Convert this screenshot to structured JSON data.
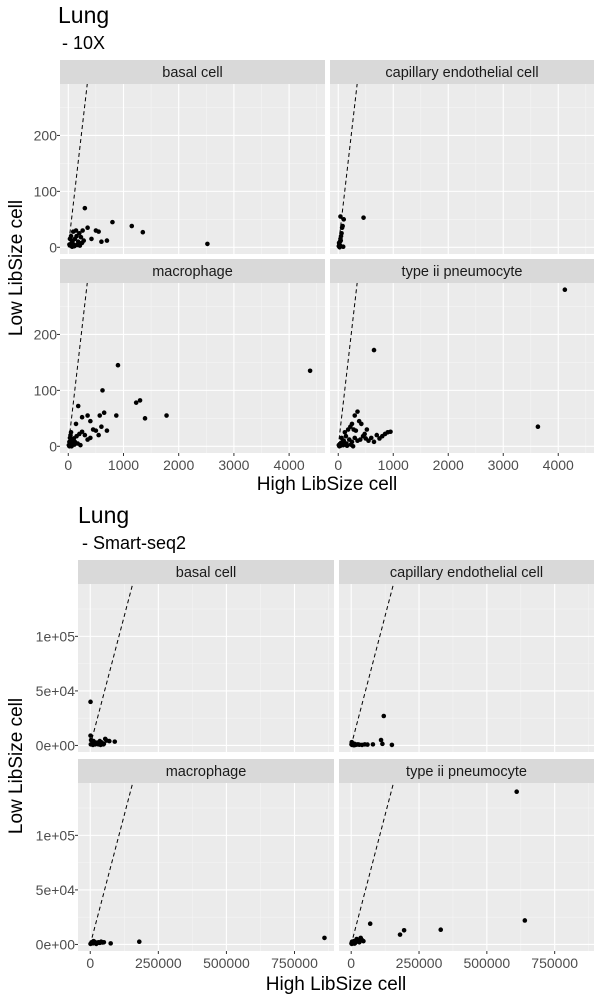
{
  "chart_data": [
    {
      "type": "scatter",
      "title": "Lung",
      "subtitle": " - 10X",
      "xlabel": "High LibSize cell",
      "ylabel": "Low LibSize cell",
      "xlim": [
        -150,
        4650
      ],
      "ylim": [
        -12,
        292
      ],
      "xticks": [
        0,
        1000,
        2000,
        3000,
        4000
      ],
      "xtick_labels": [
        "0",
        "1000",
        "2000",
        "3000",
        "4000"
      ],
      "yticks": [
        0,
        100,
        200
      ],
      "ytick_labels": [
        "0",
        "100",
        "200"
      ],
      "reference_line_slope": 0.85,
      "panels": [
        {
          "name": "basal cell",
          "points": [
            [
              20,
              5
            ],
            [
              40,
              3
            ],
            [
              60,
              8
            ],
            [
              80,
              12
            ],
            [
              100,
              5
            ],
            [
              120,
              15
            ],
            [
              150,
              20
            ],
            [
              180,
              10
            ],
            [
              200,
              25
            ],
            [
              230,
              18
            ],
            [
              250,
              8
            ],
            [
              50,
              20
            ],
            [
              90,
              28
            ],
            [
              300,
              70
            ],
            [
              350,
              35
            ],
            [
              420,
              15
            ],
            [
              500,
              30
            ],
            [
              550,
              28
            ],
            [
              600,
              10
            ],
            [
              700,
              12
            ],
            [
              800,
              45
            ],
            [
              1150,
              38
            ],
            [
              1350,
              27
            ],
            [
              2520,
              6
            ],
            [
              140,
              30
            ],
            [
              260,
              30
            ],
            [
              30,
              15
            ],
            [
              70,
              1
            ],
            [
              110,
              2
            ],
            [
              160,
              4
            ],
            [
              190,
              6
            ],
            [
              210,
              3
            ],
            [
              280,
              12
            ]
          ]
        },
        {
          "name": "capillary endothelial cell",
          "points": [
            [
              10,
              2
            ],
            [
              20,
              5
            ],
            [
              30,
              10
            ],
            [
              40,
              15
            ],
            [
              50,
              20
            ],
            [
              60,
              25
            ],
            [
              70,
              35
            ],
            [
              80,
              38
            ],
            [
              40,
              55
            ],
            [
              100,
              50
            ],
            [
              25,
              0
            ],
            [
              35,
              3
            ],
            [
              15,
              8
            ],
            [
              45,
              12
            ],
            [
              90,
              1
            ],
            [
              460,
              53
            ]
          ]
        },
        {
          "name": "macrophage",
          "points": [
            [
              10,
              2
            ],
            [
              20,
              8
            ],
            [
              30,
              15
            ],
            [
              40,
              20
            ],
            [
              50,
              25
            ],
            [
              60,
              5
            ],
            [
              80,
              10
            ],
            [
              100,
              14
            ],
            [
              120,
              8
            ],
            [
              150,
              18
            ],
            [
              200,
              22
            ],
            [
              250,
              26
            ],
            [
              300,
              20
            ],
            [
              350,
              12
            ],
            [
              400,
              15
            ],
            [
              450,
              30
            ],
            [
              500,
              28
            ],
            [
              550,
              20
            ],
            [
              600,
              35
            ],
            [
              650,
              60
            ],
            [
              700,
              28
            ],
            [
              180,
              72
            ],
            [
              350,
              55
            ],
            [
              400,
              45
            ],
            [
              570,
              55
            ],
            [
              620,
              100
            ],
            [
              900,
              145
            ],
            [
              870,
              55
            ],
            [
              1230,
              78
            ],
            [
              1300,
              82
            ],
            [
              1390,
              50
            ],
            [
              1780,
              55
            ],
            [
              4380,
              135
            ],
            [
              140,
              40
            ],
            [
              250,
              52
            ],
            [
              20,
              0
            ],
            [
              60,
              0
            ],
            [
              110,
              3
            ],
            [
              170,
              5
            ],
            [
              220,
              2
            ]
          ]
        },
        {
          "name": "type ii pneumocyte",
          "points": [
            [
              10,
              2
            ],
            [
              30,
              4
            ],
            [
              50,
              6
            ],
            [
              80,
              8
            ],
            [
              100,
              10
            ],
            [
              150,
              5
            ],
            [
              200,
              12
            ],
            [
              250,
              8
            ],
            [
              300,
              15
            ],
            [
              350,
              10
            ],
            [
              400,
              12
            ],
            [
              450,
              18
            ],
            [
              500,
              14
            ],
            [
              550,
              10
            ],
            [
              600,
              15
            ],
            [
              650,
              8
            ],
            [
              700,
              20
            ],
            [
              750,
              14
            ],
            [
              800,
              18
            ],
            [
              850,
              22
            ],
            [
              900,
              25
            ],
            [
              950,
              26
            ],
            [
              120,
              25
            ],
            [
              180,
              30
            ],
            [
              220,
              35
            ],
            [
              250,
              40
            ],
            [
              280,
              30
            ],
            [
              300,
              55
            ],
            [
              350,
              62
            ],
            [
              380,
              45
            ],
            [
              420,
              40
            ],
            [
              480,
              22
            ],
            [
              650,
              172
            ],
            [
              3630,
              35
            ],
            [
              4120,
              280
            ],
            [
              60,
              15
            ],
            [
              140,
              18
            ],
            [
              320,
              28
            ],
            [
              520,
              30
            ],
            [
              20,
              0
            ],
            [
              40,
              1
            ],
            [
              90,
              2
            ],
            [
              160,
              1
            ],
            [
              230,
              3
            ],
            [
              270,
              0
            ]
          ]
        }
      ]
    },
    {
      "type": "scatter",
      "title": "Lung",
      "subtitle": " - Smart-seq2",
      "xlabel": "High LibSize cell",
      "ylabel": "Low LibSize cell",
      "xlim": [
        -45000,
        895000
      ],
      "ylim": [
        -6000,
        148000
      ],
      "xticks": [
        0,
        250000,
        500000,
        750000
      ],
      "xtick_labels": [
        "0",
        "250000",
        "500000",
        "750000"
      ],
      "yticks": [
        0,
        50000,
        100000
      ],
      "ytick_labels": [
        "0e+00",
        "5e+04",
        "1e+05"
      ],
      "reference_line_slope": 0.95,
      "panels": [
        {
          "name": "basal cell",
          "points": [
            [
              1000,
              40000
            ],
            [
              1000,
              9000
            ],
            [
              3000,
              5000
            ],
            [
              5000,
              1000
            ],
            [
              8000,
              2000
            ],
            [
              10000,
              500
            ],
            [
              15000,
              3000
            ],
            [
              20000,
              1500
            ],
            [
              25000,
              2500
            ],
            [
              30000,
              1000
            ],
            [
              35000,
              4000
            ],
            [
              40000,
              3000
            ],
            [
              45000,
              2000
            ],
            [
              50000,
              1500
            ],
            [
              55000,
              6000
            ],
            [
              60000,
              4500
            ],
            [
              70000,
              4000
            ],
            [
              90000,
              3500
            ],
            [
              12000,
              4000
            ],
            [
              18000,
              1000
            ],
            [
              28000,
              2000
            ],
            [
              38000,
              500
            ],
            [
              48000,
              1000
            ],
            [
              2000,
              1000
            ]
          ]
        },
        {
          "name": "capillary endothelial cell",
          "points": [
            [
              1000,
              1000
            ],
            [
              2000,
              3000
            ],
            [
              3000,
              500
            ],
            [
              5000,
              2000
            ],
            [
              8000,
              1000
            ],
            [
              12000,
              1500
            ],
            [
              15000,
              500
            ],
            [
              20000,
              800
            ],
            [
              25000,
              1000
            ],
            [
              30000,
              700
            ],
            [
              40000,
              500
            ],
            [
              50000,
              1000
            ],
            [
              60000,
              800
            ],
            [
              80000,
              1000
            ],
            [
              110000,
              5000
            ],
            [
              120000,
              27000
            ],
            [
              115000,
              1500
            ],
            [
              150000,
              500
            ],
            [
              4000,
              1200
            ],
            [
              10000,
              200
            ]
          ]
        },
        {
          "name": "macrophage",
          "points": [
            [
              1000,
              500
            ],
            [
              3000,
              1000
            ],
            [
              5000,
              2000
            ],
            [
              8000,
              1500
            ],
            [
              10000,
              1000
            ],
            [
              15000,
              2500
            ],
            [
              20000,
              1800
            ],
            [
              25000,
              1200
            ],
            [
              30000,
              2000
            ],
            [
              35000,
              1500
            ],
            [
              40000,
              2500
            ],
            [
              45000,
              1800
            ],
            [
              50000,
              2000
            ],
            [
              75000,
              1000
            ],
            [
              180000,
              2500
            ],
            [
              860000,
              6000
            ],
            [
              12000,
              3000
            ],
            [
              22000,
              500
            ]
          ]
        },
        {
          "name": "type ii pneumocyte",
          "points": [
            [
              1000,
              1000
            ],
            [
              2000,
              500
            ],
            [
              5000,
              2000
            ],
            [
              8000,
              1000
            ],
            [
              10000,
              3000
            ],
            [
              15000,
              1500
            ],
            [
              20000,
              5000
            ],
            [
              25000,
              3000
            ],
            [
              30000,
              2000
            ],
            [
              35000,
              6000
            ],
            [
              40000,
              4000
            ],
            [
              45000,
              3000
            ],
            [
              70000,
              19000
            ],
            [
              180000,
              9000
            ],
            [
              195000,
              13000
            ],
            [
              330000,
              13500
            ],
            [
              610000,
              140000
            ],
            [
              640000,
              22000
            ],
            [
              3000,
              2500
            ],
            [
              12000,
              800
            ]
          ]
        }
      ]
    }
  ]
}
